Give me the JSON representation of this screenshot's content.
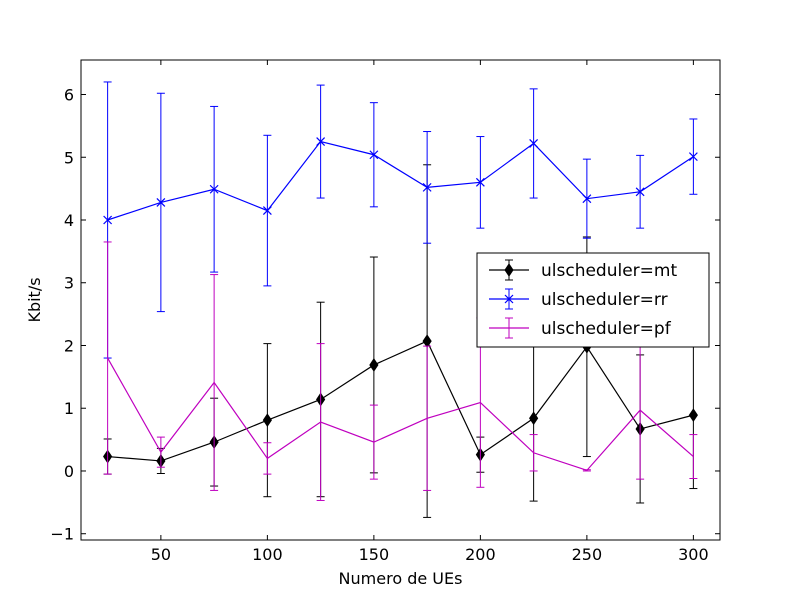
{
  "chart_data": {
    "type": "line",
    "title": "",
    "xlabel": "Numero de UEs",
    "ylabel": "Kbit/s",
    "xlim": [
      12.5,
      312.5
    ],
    "ylim": [
      -1.1,
      6.55
    ],
    "x_ticks": [
      50,
      100,
      150,
      200,
      250,
      300
    ],
    "y_ticks": [
      -1,
      0,
      1,
      2,
      3,
      4,
      5,
      6
    ],
    "x_tick_labels": [
      "50",
      "100",
      "150",
      "200",
      "250",
      "300"
    ],
    "y_tick_labels": [
      "−1",
      "0",
      "1",
      "2",
      "3",
      "4",
      "5",
      "6"
    ],
    "grid": false,
    "legend_position": "center-right",
    "x": [
      25,
      50,
      75,
      100,
      125,
      150,
      175,
      200,
      225,
      250,
      275,
      300
    ],
    "series": [
      {
        "name": "ulscheduler=mt",
        "color": "#000000",
        "marker": "diamond",
        "values": [
          0.23,
          0.16,
          0.46,
          0.81,
          1.14,
          1.69,
          2.07,
          0.26,
          0.84,
          1.98,
          0.67,
          0.89
        ],
        "errors": [
          0.28,
          0.2,
          0.7,
          1.22,
          1.55,
          1.72,
          2.81,
          0.28,
          1.32,
          1.75,
          1.18,
          1.17
        ]
      },
      {
        "name": "ulscheduler=rr",
        "color": "#0000ff",
        "marker": "x",
        "values": [
          4.0,
          4.28,
          4.49,
          4.15,
          5.25,
          5.04,
          4.52,
          4.6,
          5.22,
          4.34,
          4.45,
          5.01
        ],
        "errors": [
          2.2,
          1.74,
          1.32,
          1.2,
          0.9,
          0.83,
          0.89,
          0.73,
          0.87,
          0.63,
          0.58,
          0.6
        ]
      },
      {
        "name": "ulscheduler=pf",
        "color": "#bf00bf",
        "marker": "none",
        "values": [
          1.8,
          0.3,
          1.41,
          0.2,
          0.78,
          0.46,
          0.84,
          1.09,
          0.29,
          0.01,
          0.97,
          0.23
        ],
        "errors": [
          1.85,
          0.24,
          1.72,
          0.25,
          1.25,
          0.59,
          1.15,
          1.35,
          0.29,
          0.01,
          1.1,
          0.35
        ]
      }
    ]
  }
}
